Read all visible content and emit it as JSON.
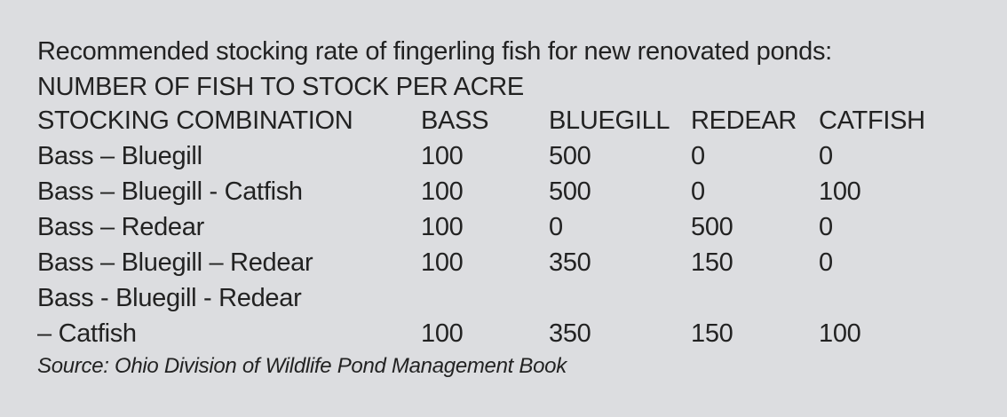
{
  "title": "Recommended stocking rate of fingerling fish for new renovated ponds:",
  "subtitle": "NUMBER OF FISH TO STOCK PER ACRE",
  "table": {
    "headers": [
      "STOCKING COMBINATION",
      "BASS",
      "BLUEGILL",
      "REDEAR",
      "CATFISH"
    ],
    "rows": [
      {
        "combination": "Bass – Bluegill",
        "bass": "100",
        "bluegill": "500",
        "redear": "0",
        "catfish": "0"
      },
      {
        "combination": "Bass – Bluegill - Catfish",
        "bass": "100",
        "bluegill": "500",
        "redear": "0",
        "catfish": "100"
      },
      {
        "combination": "Bass – Redear",
        "bass": "100",
        "bluegill": "0",
        "redear": "500",
        "catfish": "0"
      },
      {
        "combination": "Bass – Bluegill – Redear",
        "bass": "100",
        "bluegill": "350",
        "redear": "150",
        "catfish": "0"
      },
      {
        "combination": "Bass - Bluegill - Redear",
        "bass": "",
        "bluegill": "",
        "redear": "",
        "catfish": ""
      },
      {
        "combination": "– Catfish",
        "bass": "100",
        "bluegill": "350",
        "redear": "150",
        "catfish": "100"
      }
    ]
  },
  "source": "Source: Ohio Division of Wildlife Pond Management Book",
  "colors": {
    "background": "#dcdde0",
    "text": "#222222"
  }
}
